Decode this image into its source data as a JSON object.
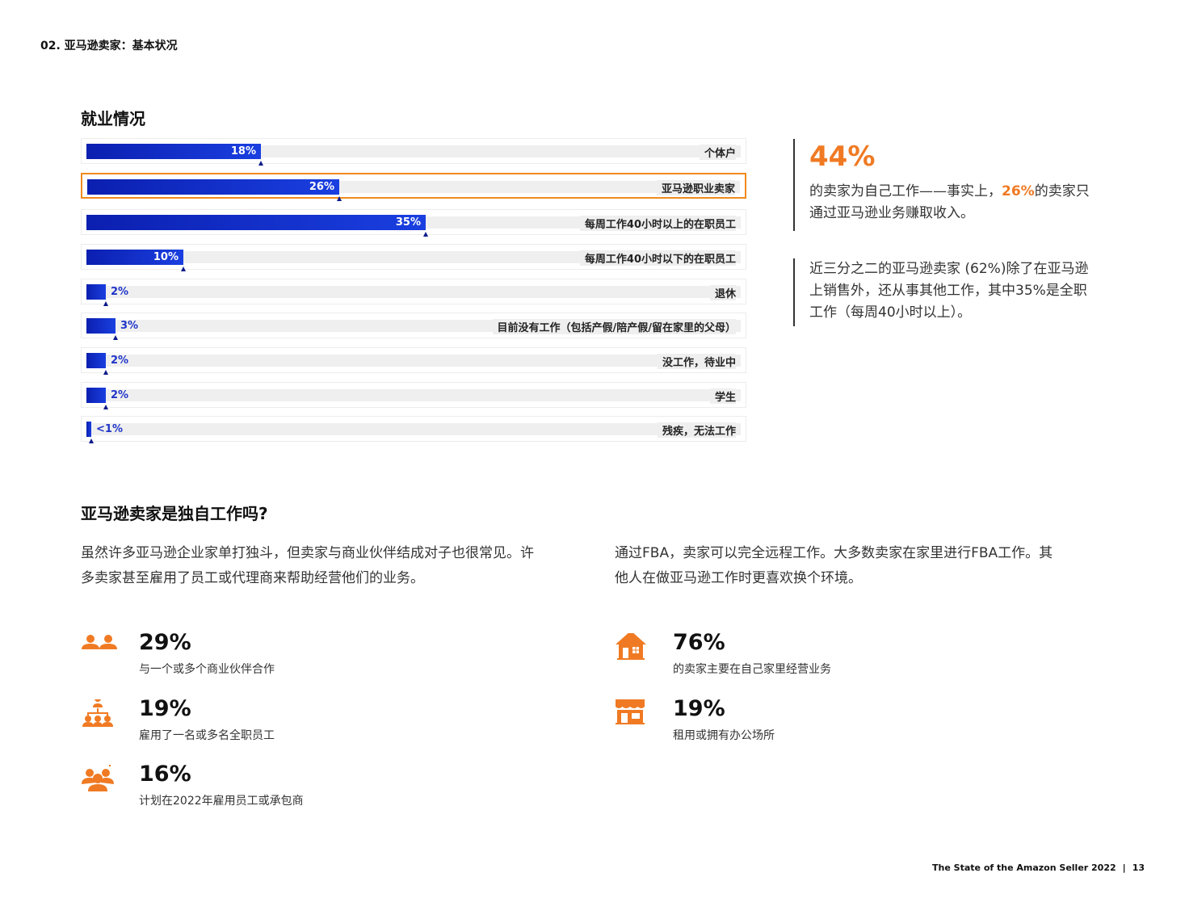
{
  "header": {
    "section": "02. 亚马逊卖家：基本状况"
  },
  "chart_data": {
    "type": "bar",
    "title": "就业情况",
    "categories": [
      "个体户",
      "亚马逊职业卖家",
      "每周工作40小时以上的在职员工",
      "每周工作40小时以下的在职员工",
      "退休",
      "目前没有工作（包括产假/陪产假/留在家里的父母）",
      "没工作，待业中",
      "学生",
      "残疾，无法工作"
    ],
    "values": [
      18,
      26,
      35,
      10,
      2,
      3,
      2,
      2,
      0.5
    ],
    "labels": [
      "18%",
      "26%",
      "35%",
      "10%",
      "2%",
      "3%",
      "2%",
      "2%",
      "<1%"
    ],
    "highlight_index": 1,
    "xlim": [
      0,
      100
    ],
    "xlabel": "",
    "ylabel": ""
  },
  "callout1": {
    "stat": "44%",
    "text_before": "的卖家为自己工作——事实上，",
    "highlight": "26%",
    "text_after": "的卖家只通过亚马逊业务赚取收入。"
  },
  "callout2": {
    "text": "近三分之二的亚马逊卖家 (62%)除了在亚马逊上销售外，还从事其他工作，其中35%是全职工作（每周40小时以上）。"
  },
  "section2": {
    "title": "亚马逊卖家是独自工作吗?",
    "left_paragraph": "虽然许多亚马逊企业家单打独斗，但卖家与商业伙伴结成对子也很常见。许多卖家甚至雇用了员工或代理商来帮助经营他们的业务。",
    "right_paragraph": "通过FBA，卖家可以完全远程工作。大多数卖家在家里进行FBA工作。其他人在做亚马逊工作时更喜欢换个环境。",
    "left_stats": [
      {
        "icon": "partners-icon",
        "value": "29%",
        "label": "与一个或多个商业伙伴合作"
      },
      {
        "icon": "org-chart-icon",
        "value": "19%",
        "label": "雇用了一名或多名全职员工"
      },
      {
        "icon": "add-team-icon",
        "value": "16%",
        "label": "计划在2022年雇用员工或承包商"
      }
    ],
    "right_stats": [
      {
        "icon": "house-icon",
        "value": "76%",
        "label": "的卖家主要在自己家里经营业务"
      },
      {
        "icon": "storefront-icon",
        "value": "19%",
        "label": "租用或拥有办公场所"
      }
    ]
  },
  "footer": {
    "report": "The State of the Amazon Seller 2022",
    "page": "13"
  },
  "colors": {
    "accent": "#f07a23",
    "bar": "#1432d2",
    "marker": "#0b1a8a"
  }
}
